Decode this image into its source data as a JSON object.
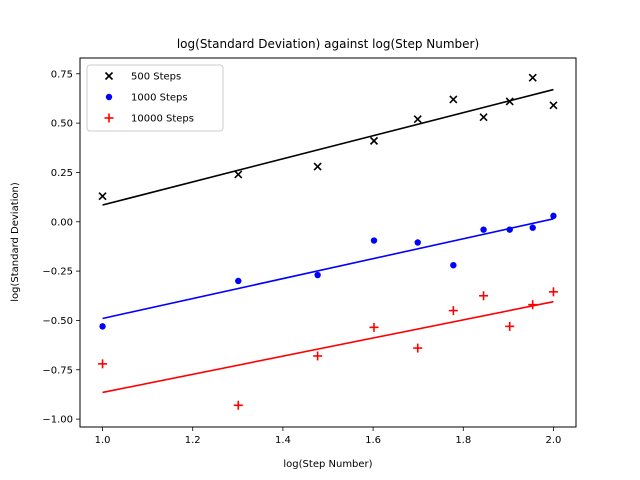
{
  "chart_data": {
    "type": "scatter",
    "title": "log(Standard Deviation) against log(Step Number)",
    "xlabel": "log(Step Number)",
    "ylabel": "log(Standard Deviation)",
    "xlim": [
      0.95,
      2.05
    ],
    "ylim": [
      -1.04,
      0.83
    ],
    "xticks": [
      1.0,
      1.2,
      1.4,
      1.6,
      1.8,
      2.0
    ],
    "xtick_labels": [
      "1.0",
      "1.2",
      "1.4",
      "1.6",
      "1.8",
      "2.0"
    ],
    "yticks": [
      -1.0,
      -0.75,
      -0.5,
      -0.25,
      0.0,
      0.25,
      0.5,
      0.75
    ],
    "ytick_labels": [
      "−1.00",
      "−0.75",
      "−0.50",
      "−0.25",
      "0.00",
      "0.25",
      "0.50",
      "0.75"
    ],
    "grid": false,
    "legend_position": "top-left",
    "series": [
      {
        "name": "500 Steps",
        "marker": "x",
        "color": "#000000",
        "x": [
          1.0,
          1.301,
          1.477,
          1.602,
          1.699,
          1.778,
          1.845,
          1.903,
          1.954,
          2.0
        ],
        "y": [
          0.13,
          0.24,
          0.28,
          0.41,
          0.52,
          0.62,
          0.53,
          0.61,
          0.73,
          0.59
        ],
        "fit": [
          [
            1.0,
            0.085
          ],
          [
            2.0,
            0.67
          ]
        ]
      },
      {
        "name": "1000 Steps",
        "marker": "o",
        "color": "#0000ff",
        "x": [
          1.0,
          1.301,
          1.477,
          1.602,
          1.699,
          1.778,
          1.845,
          1.903,
          1.954,
          2.0
        ],
        "y": [
          -0.53,
          -0.3,
          -0.27,
          -0.095,
          -0.105,
          -0.22,
          -0.04,
          -0.04,
          -0.03,
          0.03
        ],
        "fit": [
          [
            1.0,
            -0.49
          ],
          [
            2.0,
            0.015
          ]
        ]
      },
      {
        "name": "10000 Steps",
        "marker": "+",
        "color": "#ff0000",
        "x": [
          1.0,
          1.301,
          1.477,
          1.602,
          1.699,
          1.778,
          1.845,
          1.903,
          1.954,
          2.0
        ],
        "y": [
          -0.72,
          -0.93,
          -0.68,
          -0.535,
          -0.64,
          -0.45,
          -0.375,
          -0.53,
          -0.42,
          -0.355
        ],
        "fit": [
          [
            1.0,
            -0.865
          ],
          [
            2.0,
            -0.405
          ]
        ]
      }
    ]
  }
}
